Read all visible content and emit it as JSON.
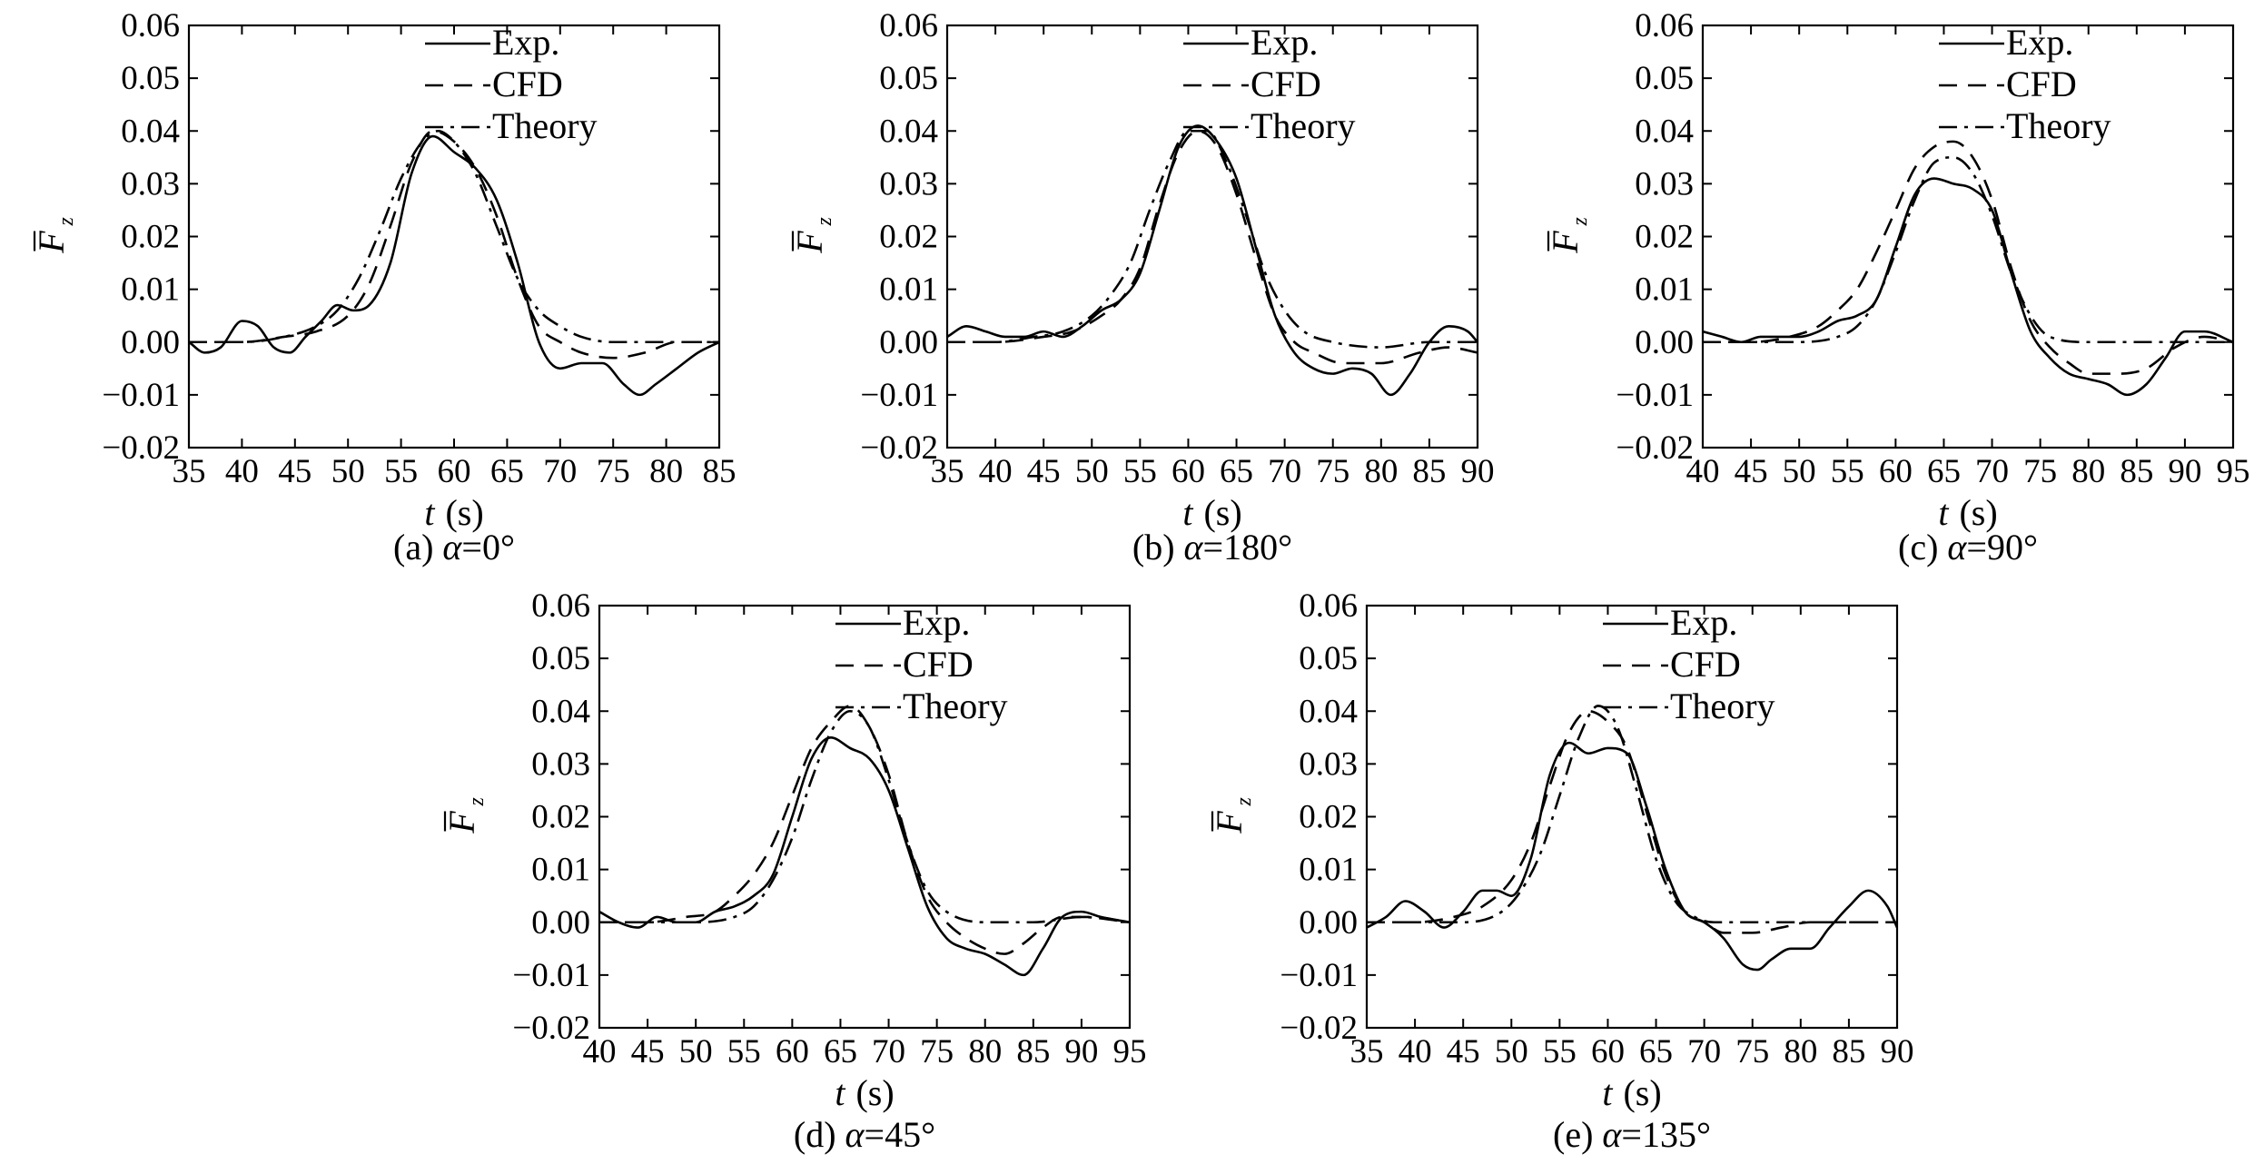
{
  "figure": {
    "ylabel_symbol": "F",
    "ylabel_subscript": "z",
    "xlabel_symbol": "t",
    "xlabel_unit": "(s)"
  },
  "chart_data": [
    {
      "type": "line",
      "caption_prefix": "(a)",
      "caption_symbol": "α",
      "caption_value": "=0°",
      "xlim": [
        35,
        85
      ],
      "ylim": [
        -0.02,
        0.06
      ],
      "xticks": [
        "35",
        "40",
        "45",
        "50",
        "55",
        "60",
        "65",
        "70",
        "75",
        "80",
        "85"
      ],
      "yticks": [
        "−0.02",
        "−0.01",
        "0.00",
        "0.01",
        "0.02",
        "0.03",
        "0.04",
        "0.05",
        "0.06"
      ],
      "legend": [
        "Exp.",
        "CFD",
        "Theory"
      ],
      "legend_position": "top-right",
      "series": [
        {
          "name": "Exp.",
          "style": "solid",
          "x": [
            35,
            36.5,
            38,
            40,
            41.5,
            43,
            44.5,
            46,
            47.5,
            49,
            50.5,
            52,
            54,
            56,
            58,
            60,
            62,
            64,
            66,
            68,
            70,
            72,
            74,
            76,
            77.5,
            79,
            81,
            83,
            85
          ],
          "y": [
            0.0,
            -0.002,
            -0.001,
            0.004,
            0.003,
            -0.001,
            -0.002,
            0.001,
            0.004,
            0.007,
            0.006,
            0.007,
            0.015,
            0.032,
            0.039,
            0.036,
            0.033,
            0.027,
            0.015,
            0.0,
            -0.005,
            -0.004,
            -0.004,
            -0.008,
            -0.01,
            -0.008,
            -0.005,
            -0.002,
            0.0
          ]
        },
        {
          "name": "CFD",
          "style": "dashed",
          "x": [
            35,
            40,
            44,
            47,
            50,
            52,
            54,
            56,
            58,
            60,
            62,
            64,
            66,
            68,
            70,
            72,
            75,
            78,
            81,
            85
          ],
          "y": [
            0.0,
            0.0,
            0.001,
            0.002,
            0.005,
            0.011,
            0.022,
            0.034,
            0.04,
            0.038,
            0.033,
            0.024,
            0.012,
            0.003,
            0.0,
            -0.002,
            -0.003,
            -0.002,
            0.0,
            0.0
          ]
        },
        {
          "name": "Theory",
          "style": "dashdot",
          "x": [
            35,
            40,
            44,
            47,
            49,
            51,
            53,
            55,
            57,
            58.5,
            60,
            62,
            64,
            66,
            68,
            70,
            72,
            75,
            80,
            85
          ],
          "y": [
            0.0,
            0.0,
            0.001,
            0.003,
            0.006,
            0.012,
            0.021,
            0.031,
            0.038,
            0.04,
            0.038,
            0.032,
            0.022,
            0.012,
            0.006,
            0.003,
            0.001,
            0.0,
            0.0,
            0.0
          ]
        }
      ]
    },
    {
      "type": "line",
      "caption_prefix": "(b)",
      "caption_symbol": "α",
      "caption_value": "=180°",
      "xlim": [
        35,
        90
      ],
      "ylim": [
        -0.02,
        0.06
      ],
      "xticks": [
        "35",
        "40",
        "45",
        "50",
        "55",
        "60",
        "65",
        "70",
        "75",
        "80",
        "85",
        "90"
      ],
      "yticks": [
        "−0.02",
        "−0.01",
        "0.00",
        "0.01",
        "0.02",
        "0.03",
        "0.04",
        "0.05",
        "0.06"
      ],
      "legend": [
        "Exp.",
        "CFD",
        "Theory"
      ],
      "legend_position": "top-right",
      "series": [
        {
          "name": "Exp.",
          "style": "solid",
          "x": [
            35,
            37,
            39,
            41,
            43,
            45,
            47,
            49,
            51,
            53,
            55,
            57,
            59,
            61,
            63,
            65,
            67,
            69,
            71,
            73,
            75,
            77,
            79,
            81,
            83,
            85,
            87,
            89,
            90
          ],
          "y": [
            0.001,
            0.003,
            0.002,
            0.001,
            0.001,
            0.002,
            0.001,
            0.003,
            0.006,
            0.008,
            0.013,
            0.025,
            0.037,
            0.041,
            0.038,
            0.031,
            0.018,
            0.005,
            -0.002,
            -0.005,
            -0.006,
            -0.005,
            -0.006,
            -0.01,
            -0.006,
            0.0,
            0.003,
            0.002,
            0.0
          ]
        },
        {
          "name": "CFD",
          "style": "dashed",
          "x": [
            35,
            40,
            45,
            48,
            51,
            53,
            55,
            57,
            59,
            61,
            63,
            65,
            67,
            69,
            71,
            73,
            76,
            80,
            84,
            87,
            90
          ],
          "y": [
            0.0,
            0.0,
            0.001,
            0.002,
            0.005,
            0.008,
            0.014,
            0.026,
            0.036,
            0.04,
            0.037,
            0.028,
            0.016,
            0.005,
            0.0,
            -0.002,
            -0.004,
            -0.004,
            -0.002,
            -0.001,
            -0.002
          ]
        },
        {
          "name": "Theory",
          "style": "dashdot",
          "x": [
            35,
            40,
            44,
            47,
            50,
            52,
            54,
            56,
            58,
            60,
            62,
            64,
            66,
            68,
            70,
            72,
            75,
            80,
            85,
            90
          ],
          "y": [
            0.0,
            0.0,
            0.001,
            0.002,
            0.005,
            0.009,
            0.015,
            0.025,
            0.034,
            0.04,
            0.04,
            0.034,
            0.024,
            0.013,
            0.006,
            0.002,
            0.0,
            -0.001,
            0.0,
            0.0
          ]
        }
      ]
    },
    {
      "type": "line",
      "caption_prefix": "(c)",
      "caption_symbol": "α",
      "caption_value": "=90°",
      "xlim": [
        40,
        95
      ],
      "ylim": [
        -0.02,
        0.06
      ],
      "xticks": [
        "40",
        "45",
        "50",
        "55",
        "60",
        "65",
        "70",
        "75",
        "80",
        "85",
        "90",
        "95"
      ],
      "yticks": [
        "−0.02",
        "−0.01",
        "0.00",
        "0.01",
        "0.02",
        "0.03",
        "0.04",
        "0.05",
        "0.06"
      ],
      "legend": [
        "Exp.",
        "CFD",
        "Theory"
      ],
      "legend_position": "top-right",
      "series": [
        {
          "name": "Exp.",
          "style": "solid",
          "x": [
            40,
            42,
            44,
            46,
            48,
            50,
            52,
            54,
            56,
            58,
            60,
            62,
            64,
            66,
            68,
            70,
            72,
            74,
            76,
            78,
            80,
            82,
            84,
            86,
            88,
            90,
            92,
            95
          ],
          "y": [
            0.002,
            0.001,
            0.0,
            0.001,
            0.001,
            0.001,
            0.002,
            0.004,
            0.005,
            0.008,
            0.018,
            0.028,
            0.031,
            0.03,
            0.029,
            0.025,
            0.013,
            0.002,
            -0.003,
            -0.006,
            -0.007,
            -0.008,
            -0.01,
            -0.008,
            -0.003,
            0.002,
            0.002,
            0.0
          ]
        },
        {
          "name": "CFD",
          "style": "dashed",
          "x": [
            40,
            45,
            49,
            52,
            54,
            56,
            58,
            60,
            62,
            64,
            66,
            68,
            70,
            72,
            74,
            76,
            78,
            80,
            83,
            86,
            89,
            92,
            95
          ],
          "y": [
            0.0,
            0.0,
            0.001,
            0.003,
            0.006,
            0.01,
            0.017,
            0.025,
            0.033,
            0.037,
            0.038,
            0.035,
            0.027,
            0.014,
            0.004,
            -0.001,
            -0.004,
            -0.006,
            -0.006,
            -0.005,
            -0.001,
            0.001,
            0.0
          ]
        },
        {
          "name": "Theory",
          "style": "dashdot",
          "x": [
            40,
            45,
            50,
            54,
            56,
            58,
            60,
            62,
            64,
            66,
            68,
            70,
            72,
            74,
            76,
            80,
            85,
            90,
            95
          ],
          "y": [
            0.0,
            0.0,
            0.0,
            0.001,
            0.003,
            0.008,
            0.017,
            0.027,
            0.034,
            0.035,
            0.032,
            0.024,
            0.013,
            0.005,
            0.001,
            0.0,
            0.0,
            0.0,
            0.0
          ]
        }
      ]
    },
    {
      "type": "line",
      "caption_prefix": "(d)",
      "caption_symbol": "α",
      "caption_value": "=45°",
      "xlim": [
        40,
        95
      ],
      "ylim": [
        -0.02,
        0.06
      ],
      "xticks": [
        "40",
        "45",
        "50",
        "55",
        "60",
        "65",
        "70",
        "75",
        "80",
        "85",
        "90",
        "95"
      ],
      "yticks": [
        "−0.02",
        "−0.01",
        "0.00",
        "0.01",
        "0.02",
        "0.03",
        "0.04",
        "0.05",
        "0.06"
      ],
      "legend": [
        "Exp.",
        "CFD",
        "Theory"
      ],
      "legend_position": "top-right",
      "series": [
        {
          "name": "Exp.",
          "style": "solid",
          "x": [
            40,
            42,
            44,
            46,
            48,
            50,
            52,
            54,
            56,
            58,
            60,
            62,
            64,
            66,
            68,
            70,
            72,
            74,
            76,
            78,
            80,
            82,
            84,
            86,
            88,
            90,
            92,
            95
          ],
          "y": [
            0.002,
            0.0,
            -0.001,
            0.001,
            0.0,
            0.0,
            0.002,
            0.003,
            0.005,
            0.009,
            0.02,
            0.031,
            0.035,
            0.033,
            0.031,
            0.025,
            0.014,
            0.003,
            -0.003,
            -0.005,
            -0.006,
            -0.008,
            -0.01,
            -0.005,
            0.001,
            0.002,
            0.001,
            0.0
          ]
        },
        {
          "name": "CFD",
          "style": "dashed",
          "x": [
            40,
            45,
            49,
            52,
            54,
            56,
            58,
            60,
            62,
            64,
            66,
            68,
            70,
            72,
            74,
            76,
            78,
            80,
            82,
            84,
            86,
            88,
            91,
            95
          ],
          "y": [
            0.0,
            0.0,
            0.001,
            0.002,
            0.005,
            0.009,
            0.015,
            0.024,
            0.033,
            0.038,
            0.041,
            0.037,
            0.028,
            0.015,
            0.005,
            0.0,
            -0.003,
            -0.005,
            -0.006,
            -0.004,
            -0.001,
            0.001,
            0.001,
            0.0
          ]
        },
        {
          "name": "Theory",
          "style": "dashdot",
          "x": [
            40,
            45,
            50,
            54,
            56,
            58,
            60,
            62,
            64,
            66,
            68,
            70,
            72,
            74,
            76,
            80,
            85,
            90,
            95
          ],
          "y": [
            0.0,
            0.0,
            0.0,
            0.001,
            0.003,
            0.008,
            0.016,
            0.027,
            0.036,
            0.04,
            0.037,
            0.027,
            0.015,
            0.006,
            0.002,
            0.0,
            0.0,
            0.001,
            0.0
          ]
        }
      ]
    },
    {
      "type": "line",
      "caption_prefix": "(e)",
      "caption_symbol": "α",
      "caption_value": "=135°",
      "xlim": [
        35,
        90
      ],
      "ylim": [
        -0.02,
        0.06
      ],
      "xticks": [
        "35",
        "40",
        "45",
        "50",
        "55",
        "60",
        "65",
        "70",
        "75",
        "80",
        "85",
        "90"
      ],
      "yticks": [
        "−0.02",
        "−0.01",
        "0.00",
        "0.01",
        "0.02",
        "0.03",
        "0.04",
        "0.05",
        "0.06"
      ],
      "legend": [
        "Exp.",
        "CFD",
        "Theory"
      ],
      "legend_position": "top-right",
      "series": [
        {
          "name": "Exp.",
          "style": "solid",
          "x": [
            35,
            37,
            39,
            41,
            43,
            45,
            47,
            48.5,
            50,
            52,
            54,
            56,
            58,
            60,
            62,
            64,
            66,
            68,
            70,
            72,
            74,
            75.5,
            77,
            79,
            81,
            83,
            85,
            87,
            89,
            90
          ],
          "y": [
            -0.001,
            0.001,
            0.004,
            0.002,
            -0.001,
            0.002,
            0.006,
            0.006,
            0.005,
            0.012,
            0.028,
            0.034,
            0.032,
            0.033,
            0.032,
            0.022,
            0.01,
            0.002,
            0.0,
            -0.003,
            -0.008,
            -0.009,
            -0.007,
            -0.005,
            -0.005,
            -0.001,
            0.003,
            0.006,
            0.003,
            -0.001
          ]
        },
        {
          "name": "CFD",
          "style": "dashed",
          "x": [
            35,
            40,
            44,
            47,
            50,
            52,
            54,
            56,
            58,
            60,
            62,
            64,
            66,
            68,
            70,
            72,
            75,
            78,
            81,
            85,
            90
          ],
          "y": [
            0.0,
            0.0,
            0.001,
            0.003,
            0.008,
            0.015,
            0.026,
            0.036,
            0.04,
            0.038,
            0.033,
            0.021,
            0.009,
            0.002,
            0.0,
            -0.002,
            -0.002,
            -0.001,
            0.0,
            0.0,
            0.0
          ]
        },
        {
          "name": "Theory",
          "style": "dashdot",
          "x": [
            35,
            40,
            45,
            49,
            51,
            53,
            55,
            57,
            59,
            61,
            63,
            65,
            67,
            69,
            71,
            75,
            80,
            85,
            90
          ],
          "y": [
            0.0,
            0.0,
            0.0,
            0.002,
            0.006,
            0.013,
            0.024,
            0.035,
            0.041,
            0.037,
            0.025,
            0.012,
            0.004,
            0.001,
            0.0,
            0.0,
            0.0,
            0.0,
            0.0
          ]
        }
      ]
    }
  ]
}
